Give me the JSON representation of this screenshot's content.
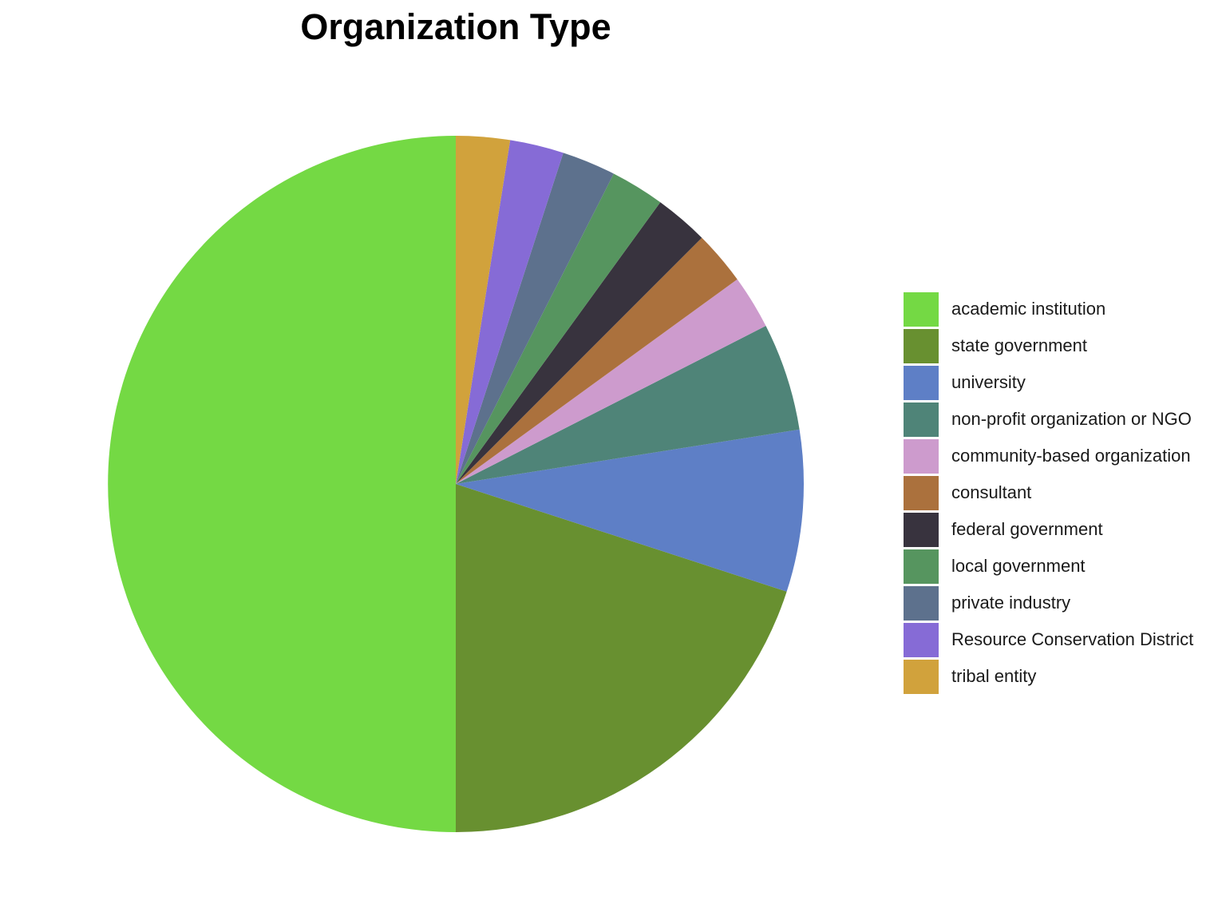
{
  "chart_data": {
    "type": "pie",
    "title": "Organization Type",
    "legend_position": "right",
    "start": "12 o'clock",
    "direction": "counterclockwise",
    "categories": [
      "academic institution",
      "state government",
      "university",
      "non-profit organization or NGO",
      "community-based organization",
      "consultant",
      "federal government",
      "local government",
      "private industry",
      "Resource Conservation District",
      "tribal entity"
    ],
    "values": [
      50.0,
      20.0,
      7.5,
      5.0,
      2.5,
      2.5,
      2.5,
      2.5,
      2.5,
      2.5,
      2.5
    ],
    "unit": "%",
    "colors": [
      "#74d944",
      "#689030",
      "#5e7fc6",
      "#4f8478",
      "#cd9bcd",
      "#ab713d",
      "#38333e",
      "#56955f",
      "#5d718d",
      "#866bd6",
      "#d1a23c"
    ]
  }
}
